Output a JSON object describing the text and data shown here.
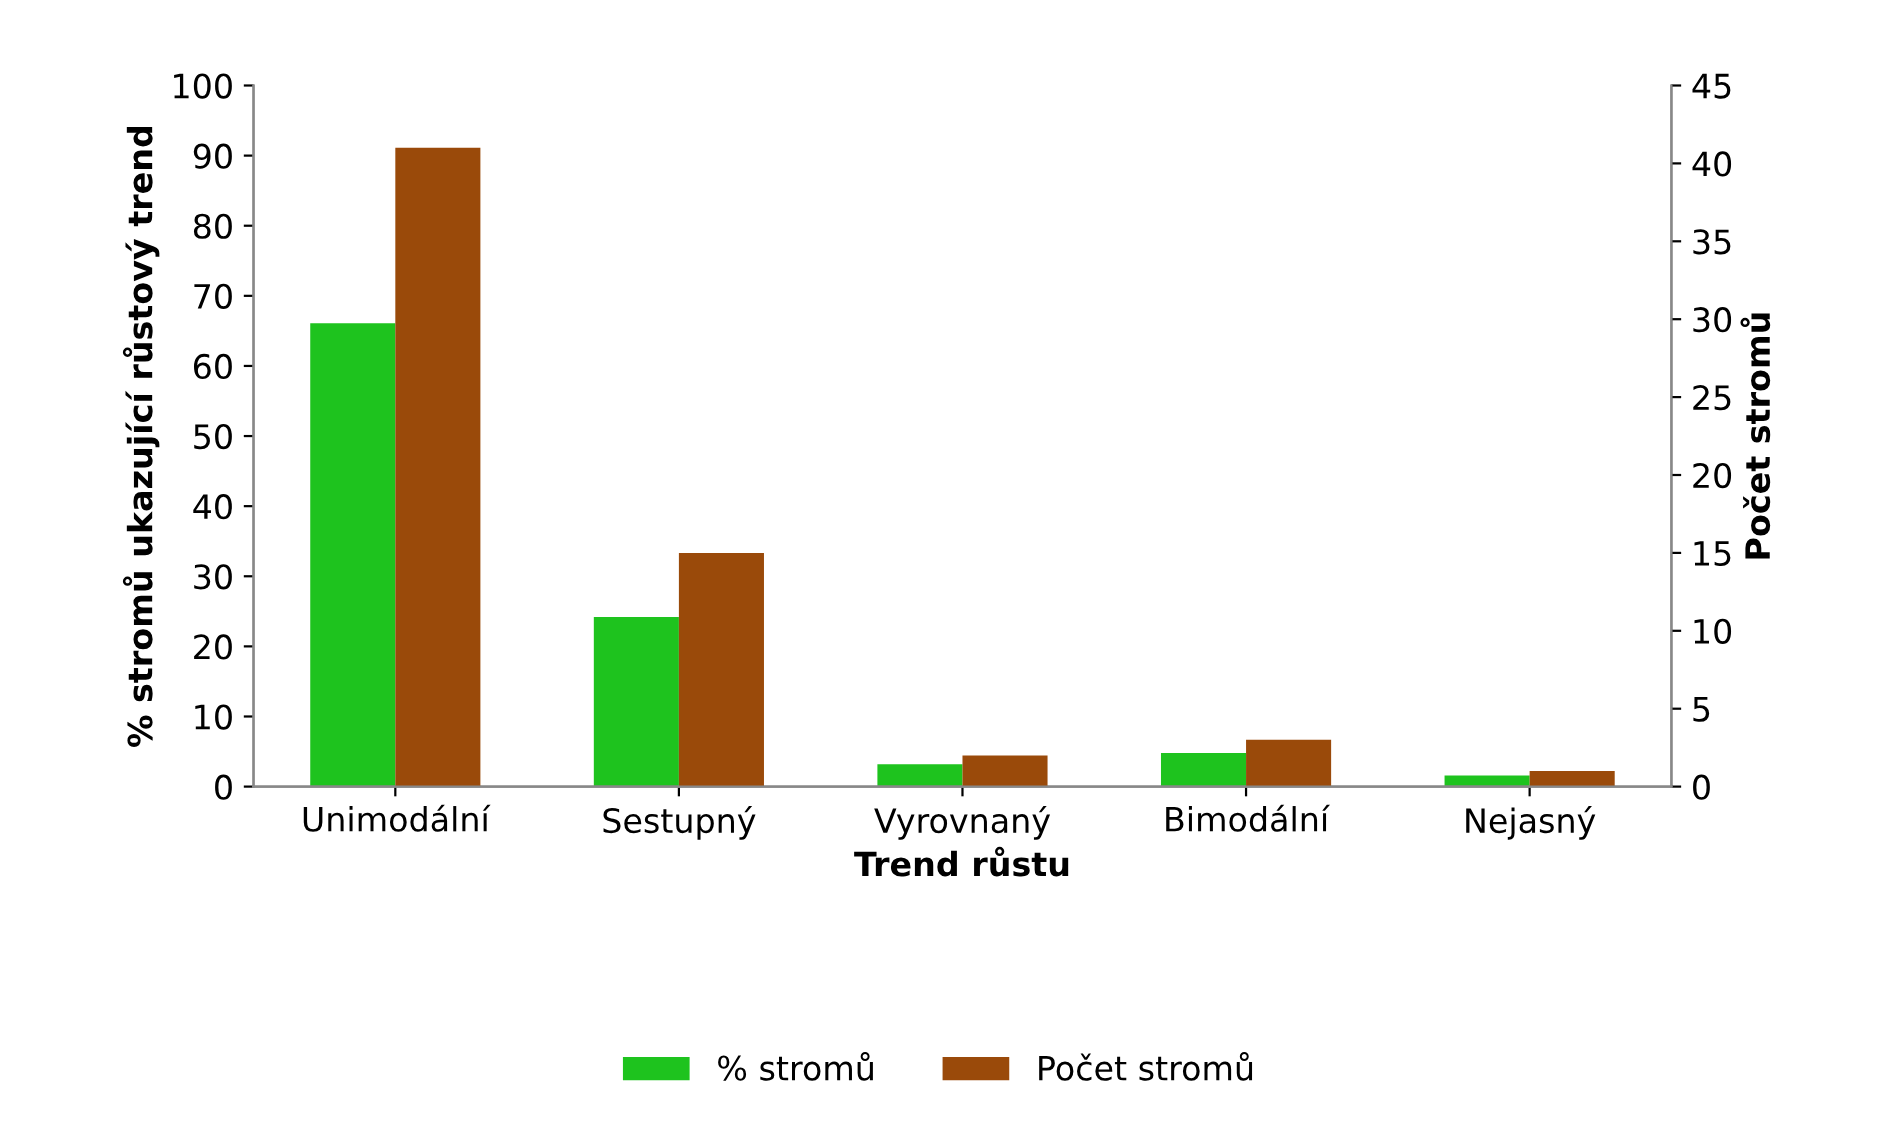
{
  "chart_data": {
    "type": "bar",
    "xlabel": "Trend růstu",
    "ylabel": "% stromů ukazující růstový trend",
    "y2label": "Počet stromů",
    "categories": [
      "Unimodální",
      "Sestupný",
      "Vyrovnaný",
      "Bimodální",
      "Nejasný"
    ],
    "series": [
      {
        "name": "% stromů",
        "color": "#1ec31e",
        "values": [
          66.1,
          24.2,
          3.2,
          4.8,
          1.6
        ]
      },
      {
        "name": "Počet stromů",
        "color": "#9a4a0a",
        "values": [
          41,
          15,
          2,
          3,
          1
        ],
        "axis": "y2"
      }
    ],
    "ylim": [
      0,
      100
    ],
    "yticks": [
      0,
      10,
      20,
      30,
      40,
      50,
      60,
      70,
      80,
      90,
      100
    ],
    "y2lim": [
      0,
      45
    ],
    "y2ticks": [
      0,
      5,
      10,
      15,
      20,
      25,
      30,
      35,
      40,
      45
    ],
    "grid": false,
    "legend": "bottom"
  }
}
